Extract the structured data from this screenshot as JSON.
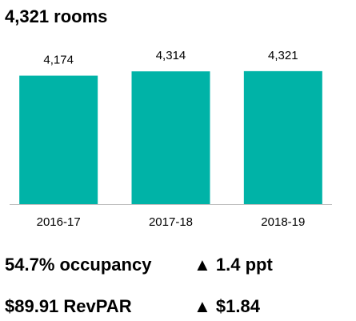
{
  "chart_data": {
    "type": "bar",
    "title": "4,321 rooms",
    "categories": [
      "2016-17",
      "2017-18",
      "2018-19"
    ],
    "values": [
      4174,
      4314,
      4321
    ],
    "value_labels": [
      "4,174",
      "4,314",
      "4,321"
    ],
    "color": "#00b3a7",
    "ylim": [
      0,
      4500
    ]
  },
  "kpis": [
    {
      "label": "54.7% occupancy",
      "change": "▲ 1.4 ppt"
    },
    {
      "label": "$89.91 RevPAR",
      "change": "▲ $1.84"
    }
  ]
}
